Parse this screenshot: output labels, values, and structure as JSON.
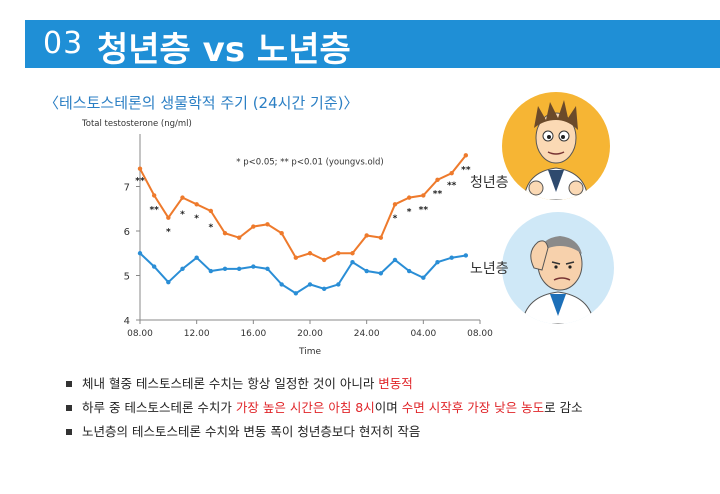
{
  "header": {
    "number": "03",
    "title": "청년층 vs 노년층"
  },
  "subtitle": "〈테스토스테론의 생물학적 주기 (24시간 기준)〉",
  "labels": {
    "young": "청년층",
    "old": "노년층"
  },
  "chart_data": {
    "type": "line",
    "ylabel": "Total testosterone   (ng/ml)",
    "xlabel": "Time",
    "annotation": "* p<0.05; ** p<0.01 (youngvs.old)",
    "ylim": [
      4,
      8
    ],
    "yticks": [
      "4",
      "5",
      "6",
      "7"
    ],
    "xticks": [
      "08.00",
      "12.00",
      "16.00",
      "20.00",
      "24.00",
      "04.00",
      "08.00"
    ],
    "x": [
      8,
      9,
      10,
      11,
      12,
      13,
      14,
      15,
      16,
      17,
      18,
      19,
      20,
      21,
      22,
      23,
      24,
      25,
      26,
      27,
      28,
      29,
      30,
      31,
      32
    ],
    "series": [
      {
        "color": "#ee7a2c",
        "values": [
          7.4,
          6.8,
          6.3,
          6.75,
          6.6,
          6.45,
          5.95,
          5.85,
          6.1,
          6.15,
          5.95,
          5.4,
          5.5,
          5.35,
          5.5,
          5.5,
          5.9,
          5.85,
          6.6,
          6.75,
          6.8,
          7.15,
          7.3,
          7.7,
          null
        ]
      },
      {
        "color": "#2a8ed6",
        "values": [
          5.5,
          5.2,
          4.85,
          5.15,
          5.4,
          5.1,
          5.15,
          5.15,
          5.2,
          5.15,
          4.8,
          4.6,
          4.8,
          4.7,
          4.8,
          5.3,
          5.1,
          5.05,
          5.35,
          5.1,
          4.95,
          5.3,
          5.4,
          5.45,
          null
        ]
      }
    ],
    "significance": [
      {
        "x": 8,
        "y": 7.25,
        "text": "**"
      },
      {
        "x": 9,
        "y": 6.6,
        "text": "**"
      },
      {
        "x": 10,
        "y": 6.1,
        "text": "*"
      },
      {
        "x": 11,
        "y": 6.5,
        "text": "*"
      },
      {
        "x": 12,
        "y": 6.4,
        "text": "*"
      },
      {
        "x": 13,
        "y": 6.2,
        "text": "*"
      },
      {
        "x": 26,
        "y": 6.4,
        "text": "*"
      },
      {
        "x": 27,
        "y": 6.55,
        "text": "*"
      },
      {
        "x": 28,
        "y": 6.6,
        "text": "**"
      },
      {
        "x": 29,
        "y": 6.95,
        "text": "**"
      },
      {
        "x": 30,
        "y": 7.15,
        "text": "**"
      },
      {
        "x": 31,
        "y": 7.5,
        "text": "**"
      }
    ]
  },
  "bullets": [
    {
      "parts": [
        {
          "text": "체내 혈중 테스토스테론 수치는 항상 일정한 것이 아니라 ",
          "red": false
        },
        {
          "text": "변동적",
          "red": true
        }
      ]
    },
    {
      "parts": [
        {
          "text": "하루 중 테스토스테론 수치가 ",
          "red": false
        },
        {
          "text": "가장 높은 시간은 아침 8시",
          "red": true
        },
        {
          "text": "이며 ",
          "red": false
        },
        {
          "text": "수면 시작후 가장 낮은 농도",
          "red": true
        },
        {
          "text": "로 감소",
          "red": false
        }
      ]
    },
    {
      "parts": [
        {
          "text": "노년층의 테스토스테론 수치와 변동 폭이 청년층보다 현저히 작음",
          "red": false
        }
      ]
    }
  ]
}
